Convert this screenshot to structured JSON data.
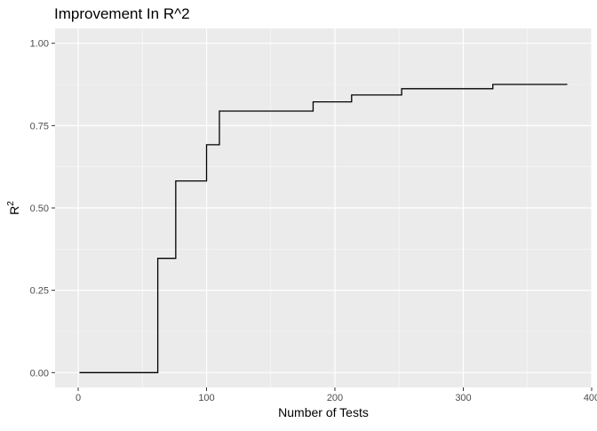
{
  "chart_data": {
    "type": "line",
    "step": true,
    "title": "Improvement In R^2",
    "xlabel": "Number of Tests",
    "ylabel_base": "R",
    "ylabel_superscript": "2",
    "xlim": [
      -18,
      400
    ],
    "ylim": [
      -0.045,
      1.045
    ],
    "x_ticks": [
      0,
      100,
      200,
      300,
      400
    ],
    "x_tick_labels": [
      "0",
      "100",
      "200",
      "300",
      "400"
    ],
    "y_ticks": [
      0,
      0.25,
      0.5,
      0.75,
      1.0
    ],
    "y_tick_labels": [
      "0.00",
      "0.25",
      "0.50",
      "0.75",
      "1.00"
    ],
    "grid": true,
    "background": "#EBEBEB",
    "line_color": "#000000",
    "points": [
      {
        "x": 1,
        "y": 0.0
      },
      {
        "x": 62,
        "y": 0.0
      },
      {
        "x": 62,
        "y": 0.347
      },
      {
        "x": 76,
        "y": 0.347
      },
      {
        "x": 76,
        "y": 0.582
      },
      {
        "x": 100,
        "y": 0.582
      },
      {
        "x": 100,
        "y": 0.692
      },
      {
        "x": 110,
        "y": 0.692
      },
      {
        "x": 110,
        "y": 0.794
      },
      {
        "x": 183,
        "y": 0.794
      },
      {
        "x": 183,
        "y": 0.822
      },
      {
        "x": 213,
        "y": 0.822
      },
      {
        "x": 213,
        "y": 0.843
      },
      {
        "x": 252,
        "y": 0.843
      },
      {
        "x": 252,
        "y": 0.862
      },
      {
        "x": 323,
        "y": 0.862
      },
      {
        "x": 323,
        "y": 0.875
      },
      {
        "x": 381,
        "y": 0.875
      }
    ]
  }
}
